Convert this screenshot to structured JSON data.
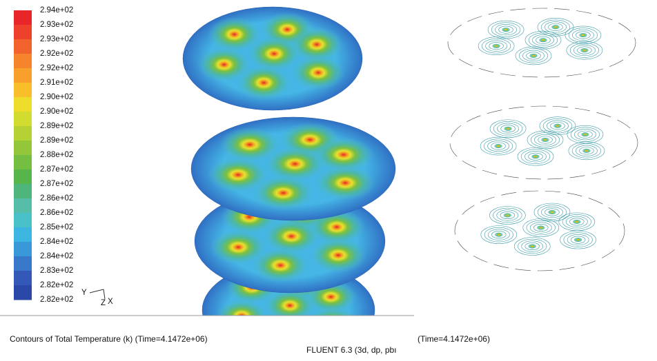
{
  "legend": {
    "labels": [
      "2.94e+02",
      "2.93e+02",
      "2.93e+02",
      "2.92e+02",
      "2.92e+02",
      "2.91e+02",
      "2.90e+02",
      "2.90e+02",
      "2.89e+02",
      "2.89e+02",
      "2.88e+02",
      "2.87e+02",
      "2.87e+02",
      "2.86e+02",
      "2.86e+02",
      "2.85e+02",
      "2.84e+02",
      "2.84e+02",
      "2.83e+02",
      "2.82e+02",
      "2.82e+02"
    ],
    "colors": [
      "#e8262a",
      "#ee412b",
      "#f2622c",
      "#f5842d",
      "#f8a02b",
      "#f8bf2a",
      "#eedc2a",
      "#d2dc30",
      "#b4d234",
      "#94c63a",
      "#74be42",
      "#56b64c",
      "#4eb67c",
      "#56bea8",
      "#4ac0c8",
      "#3cb6e0",
      "#3898d8",
      "#3878c8",
      "#3458b8",
      "#2a48a8"
    ]
  },
  "axes": {
    "y": "Y",
    "z": "Z",
    "x": "X"
  },
  "footer": {
    "caption": "Contours of Total Temperature (k)  (Time=4.1472e+06)",
    "solver": "FLUENT 6.3 (3d, dp, pbı",
    "time": "(Time=4.1472e+06)"
  }
}
